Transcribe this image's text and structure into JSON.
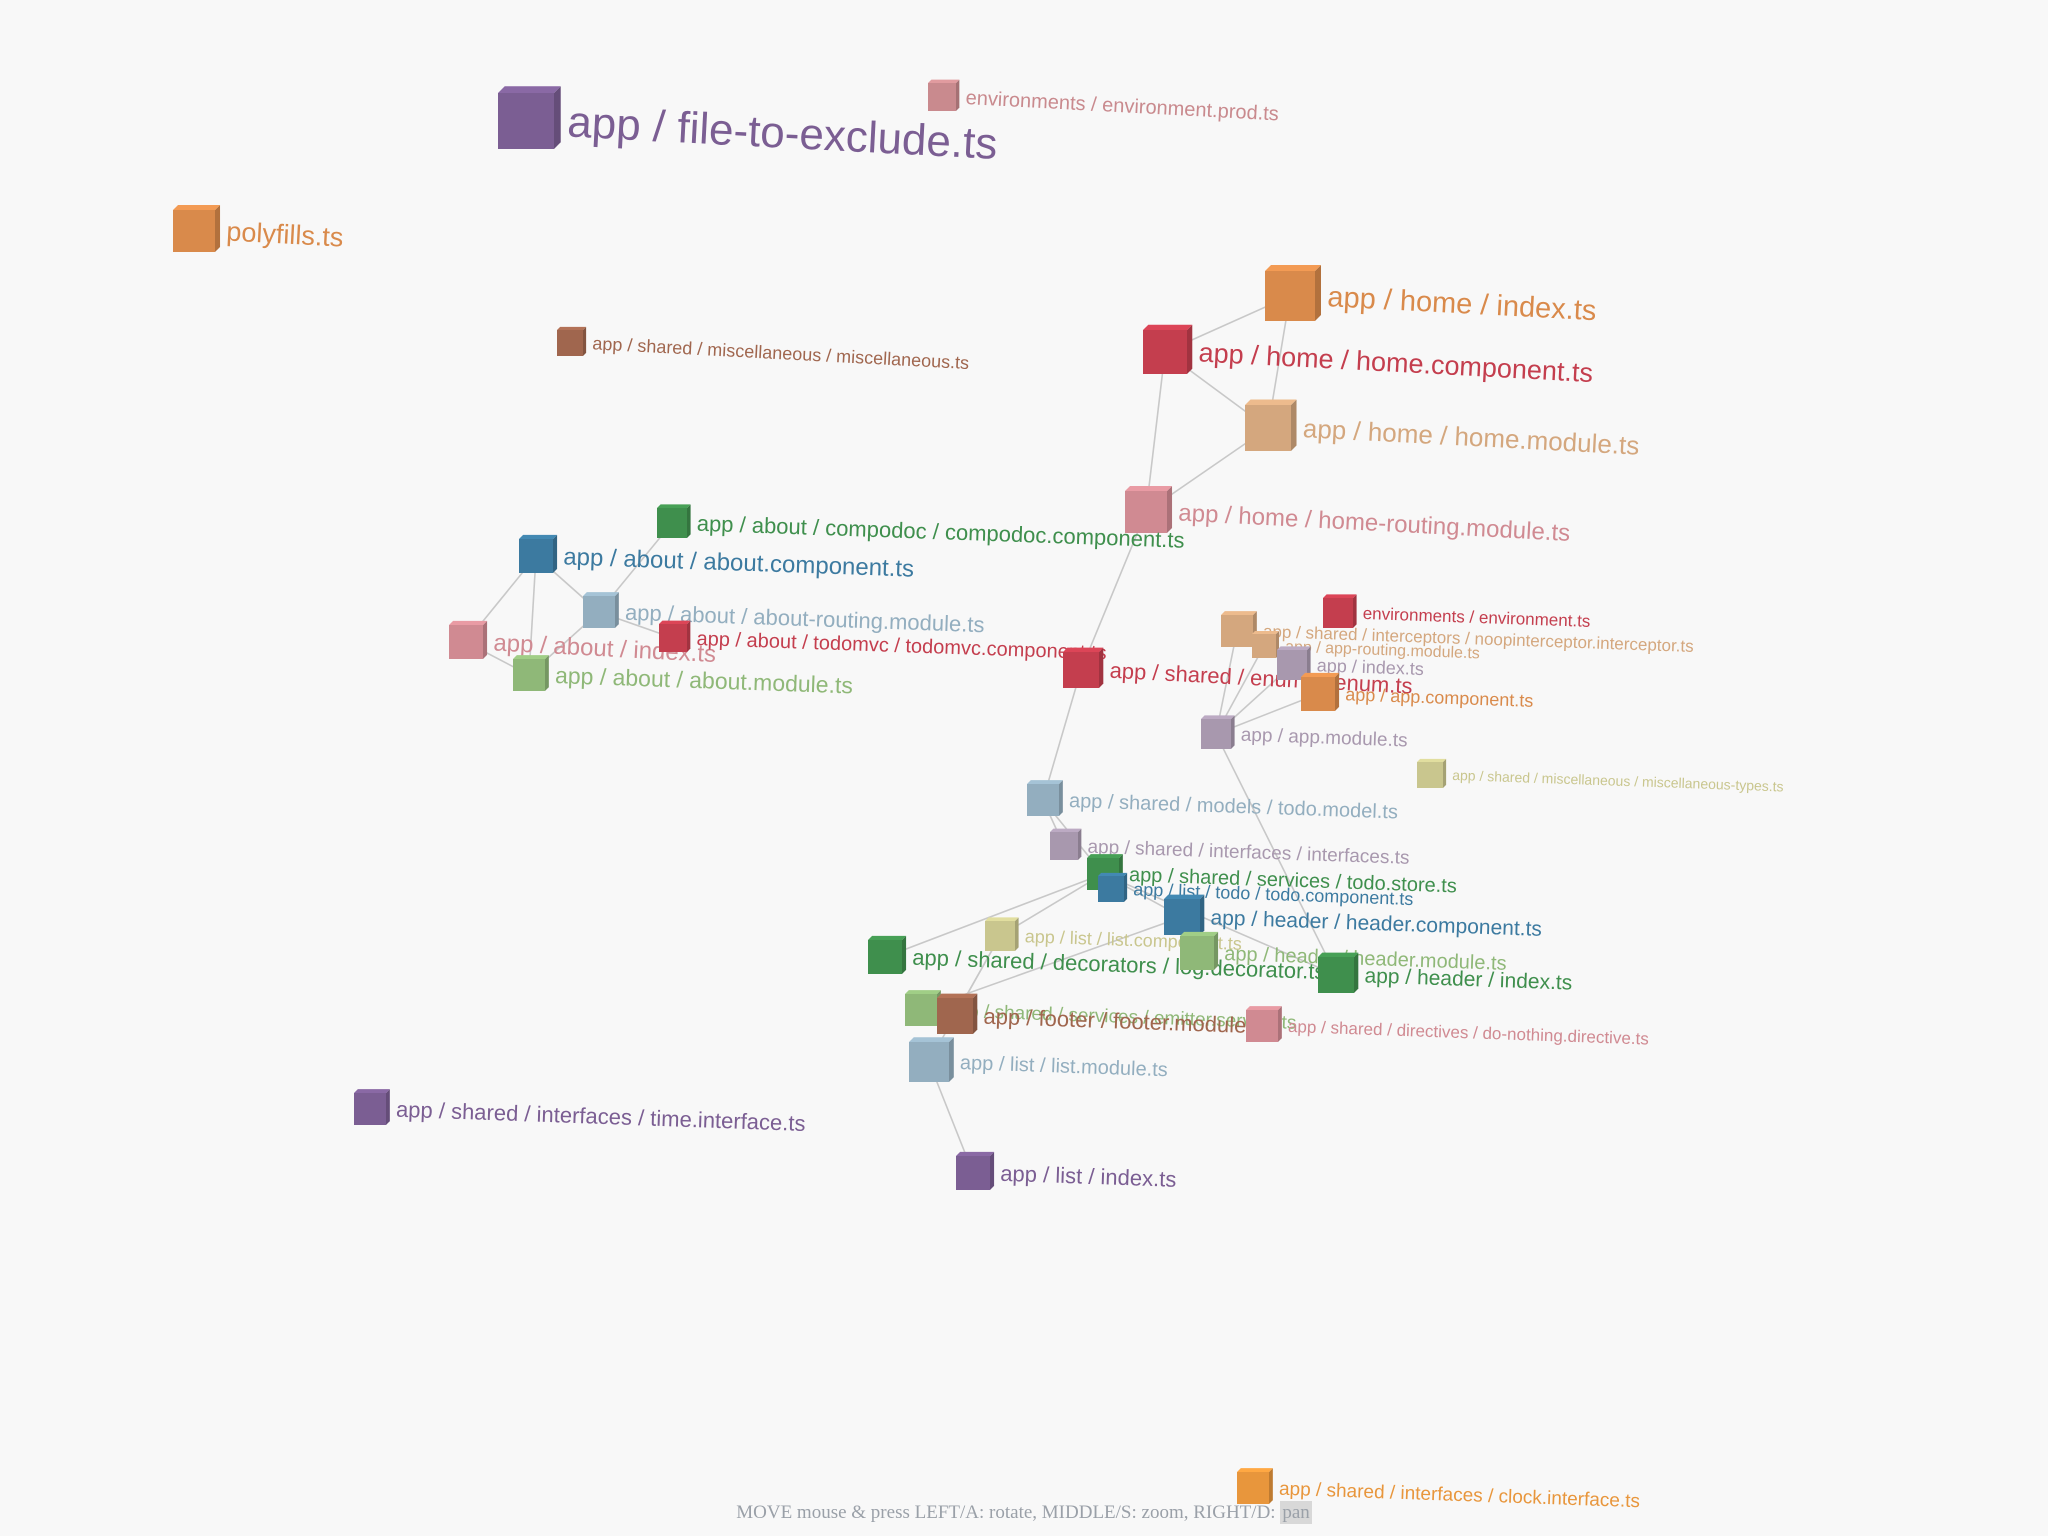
{
  "graph": {
    "nodes": [
      {
        "id": "file-to-exclude",
        "label": "app / file-to-exclude.ts",
        "color": "#7b5e93"
      },
      {
        "id": "env-prod",
        "label": "environments / environment.prod.ts",
        "color": "#c98a8e"
      },
      {
        "id": "polyfills",
        "label": "polyfills.ts",
        "color": "#d98a4b"
      },
      {
        "id": "home-index",
        "label": "app / home / index.ts",
        "color": "#d98a4b"
      },
      {
        "id": "home-component",
        "label": "app / home / home.component.ts",
        "color": "#c43e4e"
      },
      {
        "id": "miscellaneous",
        "label": "app / shared / miscellaneous / miscellaneous.ts",
        "color": "#a0664e"
      },
      {
        "id": "home-module",
        "label": "app / home / home.module.ts",
        "color": "#d4a77e"
      },
      {
        "id": "home-routing",
        "label": "app / home / home-routing.module.ts",
        "color": "#d08a92"
      },
      {
        "id": "compodoc-component",
        "label": "app / about / compodoc / compodoc.component.ts",
        "color": "#3f8f4d"
      },
      {
        "id": "about-component",
        "label": "app / about / about.component.ts",
        "color": "#3c7aa0"
      },
      {
        "id": "about-routing",
        "label": "app / about / about-routing.module.ts",
        "color": "#93aebf"
      },
      {
        "id": "about-index",
        "label": "app / about / index.ts",
        "color": "#d08a92"
      },
      {
        "id": "todomvc-component",
        "label": "app / about / todomvc / todomvc.component.ts",
        "color": "#c43e4e"
      },
      {
        "id": "about-module",
        "label": "app / about / about.module.ts",
        "color": "#8fb878"
      },
      {
        "id": "env",
        "label": "environments / environment.ts",
        "color": "#c43e4e"
      },
      {
        "id": "noop-interceptor",
        "label": "app / shared / interceptors / noopinterceptor.interceptor.ts",
        "color": "#d4a77e"
      },
      {
        "id": "app-routing",
        "label": "app / app-routing.module.ts",
        "color": "#d4a77e"
      },
      {
        "id": "enums",
        "label": "app / shared / enums / enum.ts",
        "color": "#c43e4e"
      },
      {
        "id": "app-index",
        "label": "app / index.ts",
        "color": "#a898ae"
      },
      {
        "id": "app-component",
        "label": "app / app.component.ts",
        "color": "#d98a4b"
      },
      {
        "id": "app-module",
        "label": "app / app.module.ts",
        "color": "#a898ae"
      },
      {
        "id": "misc-types",
        "label": "app / shared / miscellaneous / miscellaneous-types.ts",
        "color": "#c9c68e"
      },
      {
        "id": "todo-model",
        "label": "app / shared / models / todo.model.ts",
        "color": "#93aebf"
      },
      {
        "id": "interfaces",
        "label": "app / shared / interfaces / interfaces.ts",
        "color": "#a898ae"
      },
      {
        "id": "todo-store",
        "label": "app / shared / services / todo.store.ts",
        "color": "#3f8f4d"
      },
      {
        "id": "todo-component",
        "label": "app / list / todo / todo.component.ts",
        "color": "#3c7aa0"
      },
      {
        "id": "header-component",
        "label": "app / header / header.component.ts",
        "color": "#3c7aa0"
      },
      {
        "id": "list-component",
        "label": "app / list / list.component.ts",
        "color": "#c9c68e"
      },
      {
        "id": "log-decorator",
        "label": "app / shared / decorators / log.decorator.ts",
        "color": "#3f8f4d"
      },
      {
        "id": "header-module",
        "label": "app / header / header.module.ts",
        "color": "#8fb878"
      },
      {
        "id": "header-index",
        "label": "app / header / index.ts",
        "color": "#3f8f4d"
      },
      {
        "id": "emitter-service",
        "label": "app / shared / services / emitter.service.ts",
        "color": "#8fb878"
      },
      {
        "id": "footer-module",
        "label": "app / footer / footer.module.ts",
        "color": "#a0664e"
      },
      {
        "id": "do-nothing",
        "label": "app / shared / directives / do-nothing.directive.ts",
        "color": "#d08a92"
      },
      {
        "id": "list-module",
        "label": "app / list / list.module.ts",
        "color": "#93aebf"
      },
      {
        "id": "time-interface",
        "label": "app / shared / interfaces / time.interface.ts",
        "color": "#7b5e93"
      },
      {
        "id": "list-index",
        "label": "app / list / index.ts",
        "color": "#7b5e93"
      },
      {
        "id": "clock-interface",
        "label": "app / shared / interfaces / clock.interface.ts",
        "color": "#e8963c"
      }
    ],
    "links": [
      [
        "home-index",
        "home-component"
      ],
      [
        "home-index",
        "home-module"
      ],
      [
        "home-component",
        "home-module"
      ],
      [
        "home-component",
        "home-routing"
      ],
      [
        "home-routing",
        "home-module"
      ],
      [
        "home-routing",
        "enums"
      ],
      [
        "about-component",
        "about-index"
      ],
      [
        "about-component",
        "about-module"
      ],
      [
        "about-component",
        "about-routing"
      ],
      [
        "about-index",
        "about-module"
      ],
      [
        "about-routing",
        "compodoc-component"
      ],
      [
        "about-routing",
        "todomvc-component"
      ],
      [
        "about-module",
        "about-routing"
      ],
      [
        "enums",
        "todo-model"
      ],
      [
        "app-module",
        "app-routing"
      ],
      [
        "app-module",
        "app-component"
      ],
      [
        "app-module",
        "app-index"
      ],
      [
        "app-module",
        "noop-interceptor"
      ],
      [
        "app-module",
        "header-index"
      ],
      [
        "todo-model",
        "interfaces"
      ],
      [
        "todo-model",
        "todo-store"
      ],
      [
        "todo-store",
        "list-component"
      ],
      [
        "todo-store",
        "header-component"
      ],
      [
        "todo-store",
        "log-decorator"
      ],
      [
        "todo-store",
        "header-index"
      ],
      [
        "list-component",
        "list-module"
      ],
      [
        "list-component",
        "footer-module"
      ],
      [
        "list-module",
        "list-index"
      ],
      [
        "header-component",
        "header-module"
      ],
      [
        "footer-module",
        "emitter-service"
      ],
      [
        "emitter-service",
        "header-component"
      ]
    ]
  },
  "help": {
    "text": "MOVE mouse & press LEFT/A: rotate, MIDDLE/S: zoom, RIGHT/D: ",
    "mode": "pan"
  }
}
